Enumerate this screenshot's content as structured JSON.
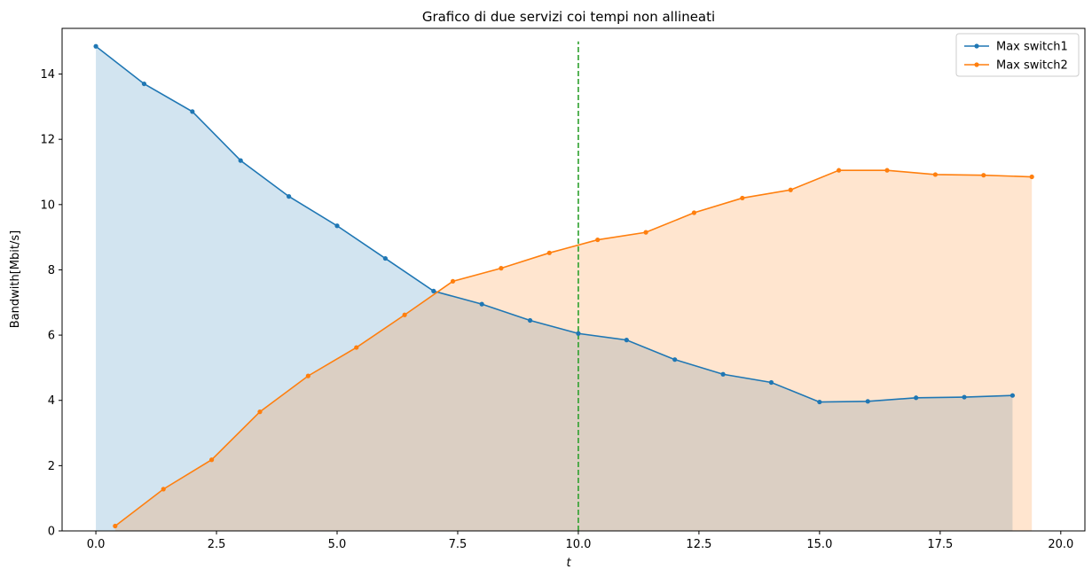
{
  "chart_data": {
    "type": "line",
    "title": "Grafico di due servizi coi tempi non allineati",
    "xlabel": "t",
    "ylabel": "Bandwith[Mbit/s]",
    "xlim": [
      -0.7,
      20.5
    ],
    "ylim": [
      0,
      15.4
    ],
    "xticks": [
      "0.0",
      "2.5",
      "5.0",
      "7.5",
      "10.0",
      "12.5",
      "15.0",
      "17.5",
      "20.0"
    ],
    "yticks": [
      "0",
      "2",
      "4",
      "6",
      "8",
      "10",
      "12",
      "14"
    ],
    "grid": false,
    "legend_position": "top-right",
    "vline": {
      "x": 10,
      "y_range": [
        0,
        15
      ],
      "color": "#2ca02c",
      "style": "dashed"
    },
    "series": [
      {
        "name": "Max switch1",
        "color": "#1f77b4",
        "fill_color": "#1f77b4",
        "x": [
          0,
          1,
          2,
          3,
          4,
          5,
          6,
          7,
          8,
          9,
          10,
          11,
          12,
          13,
          14,
          15,
          16,
          17,
          18,
          19
        ],
        "y": [
          14.85,
          13.7,
          12.85,
          11.35,
          10.25,
          9.35,
          8.35,
          7.35,
          6.95,
          6.45,
          6.05,
          5.85,
          5.25,
          4.8,
          4.55,
          3.95,
          3.97,
          4.08,
          4.1,
          4.15
        ]
      },
      {
        "name": "Max switch2",
        "color": "#ff7f0e",
        "fill_color": "#ff7f0e",
        "x": [
          0.4,
          1.4,
          2.4,
          3.4,
          4.4,
          5.4,
          6.4,
          7.4,
          8.4,
          9.4,
          10.4,
          11.4,
          12.4,
          13.4,
          14.4,
          15.4,
          16.4,
          17.4,
          18.4,
          19.4
        ],
        "y": [
          0.15,
          1.28,
          2.18,
          3.65,
          4.75,
          5.62,
          6.62,
          7.65,
          8.05,
          8.52,
          8.92,
          9.15,
          9.75,
          10.2,
          10.45,
          11.05,
          11.05,
          10.92,
          10.9,
          10.85
        ]
      }
    ]
  }
}
